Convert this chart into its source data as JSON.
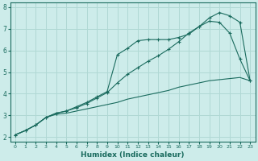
{
  "xlabel": "Humidex (Indice chaleur)",
  "xlim": [
    -0.5,
    23.5
  ],
  "ylim": [
    1.8,
    8.2
  ],
  "yticks": [
    2,
    3,
    4,
    5,
    6,
    7,
    8
  ],
  "xticks": [
    0,
    1,
    2,
    3,
    4,
    5,
    6,
    7,
    8,
    9,
    10,
    11,
    12,
    13,
    14,
    15,
    16,
    17,
    18,
    19,
    20,
    21,
    22,
    23
  ],
  "bg_color": "#cdecea",
  "grid_color": "#b0d8d4",
  "line_color": "#1a6b5e",
  "line1_x": [
    0,
    1,
    2,
    3,
    4,
    5,
    6,
    7,
    8,
    9,
    10,
    11,
    12,
    13,
    14,
    15,
    16,
    17,
    18,
    19,
    20,
    21,
    22,
    23
  ],
  "line1_y": [
    2.1,
    2.3,
    2.55,
    2.9,
    3.05,
    3.1,
    3.2,
    3.3,
    3.4,
    3.5,
    3.6,
    3.75,
    3.85,
    3.95,
    4.05,
    4.15,
    4.3,
    4.4,
    4.5,
    4.6,
    4.65,
    4.7,
    4.75,
    4.6
  ],
  "line2_x": [
    0,
    1,
    2,
    3,
    4,
    5,
    6,
    7,
    8,
    9,
    10,
    11,
    12,
    13,
    14,
    15,
    16,
    17,
    18,
    19,
    20,
    21,
    22,
    23
  ],
  "line2_y": [
    2.1,
    2.3,
    2.55,
    2.9,
    3.1,
    3.2,
    3.4,
    3.6,
    3.85,
    4.1,
    5.8,
    6.1,
    6.45,
    6.5,
    6.5,
    6.5,
    6.6,
    6.75,
    7.1,
    7.35,
    7.3,
    6.8,
    5.6,
    4.6
  ],
  "line3_x": [
    0,
    1,
    2,
    3,
    4,
    5,
    6,
    7,
    8,
    9,
    10,
    11,
    12,
    13,
    14,
    15,
    16,
    17,
    18,
    19,
    20,
    21,
    22,
    23
  ],
  "line3_y": [
    2.1,
    2.3,
    2.55,
    2.9,
    3.1,
    3.2,
    3.35,
    3.55,
    3.8,
    4.05,
    4.5,
    4.9,
    5.2,
    5.5,
    5.75,
    6.05,
    6.4,
    6.8,
    7.1,
    7.5,
    7.75,
    7.6,
    7.3,
    4.6
  ],
  "marker": "+"
}
